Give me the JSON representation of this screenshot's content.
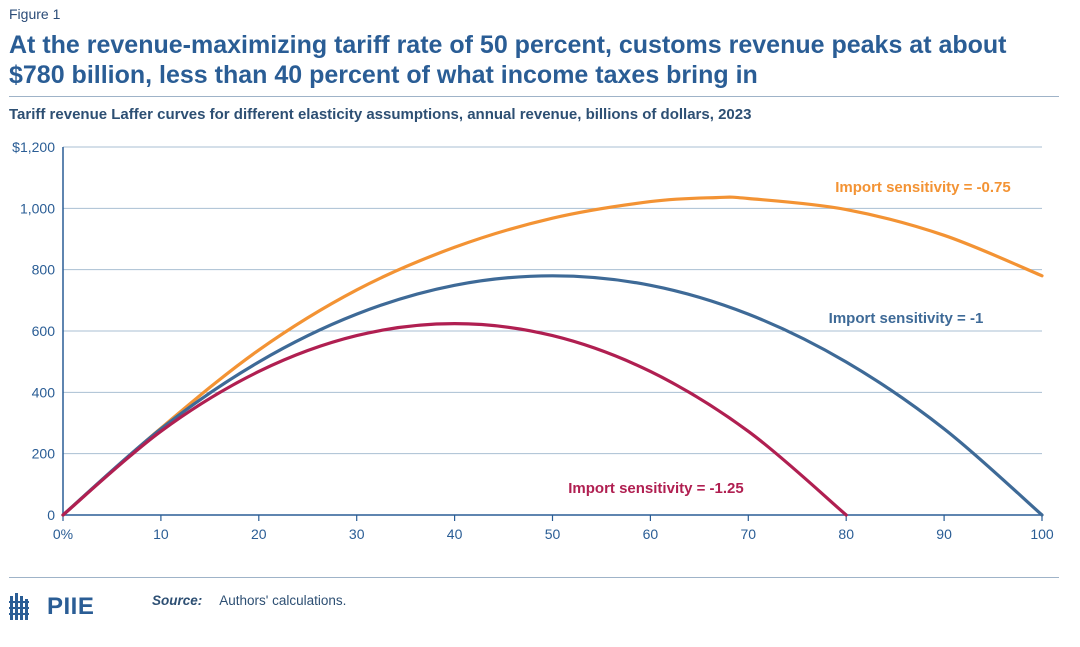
{
  "figure_label": "Figure 1",
  "title": "At the revenue-maximizing tariff rate of 50 percent, customs revenue peaks at about $780 billion, less than 40 percent of what income taxes bring in",
  "subtitle": "Tariff revenue Laffer curves for different elasticity assumptions, annual revenue, billions of dollars, 2023",
  "chart_data": {
    "type": "line",
    "title": "",
    "xlabel": "",
    "ylabel": "",
    "xlim": [
      0,
      100
    ],
    "ylim": [
      0,
      1200
    ],
    "x_ticks": [
      0,
      10,
      20,
      30,
      40,
      50,
      60,
      70,
      80,
      90,
      100
    ],
    "x_tick_labels": [
      "0%",
      "10",
      "20",
      "30",
      "40",
      "50",
      "60",
      "70",
      "80",
      "90",
      "100"
    ],
    "y_ticks": [
      0,
      200,
      400,
      600,
      800,
      1000,
      1200
    ],
    "y_tick_labels": [
      "0",
      "200",
      "400",
      "600",
      "800",
      "1,000",
      "$1,200"
    ],
    "grid": "horizontal",
    "series": [
      {
        "name": "Import sensitivity = -0.75",
        "color": "#f39334",
        "x": [
          0,
          10,
          20,
          30,
          40,
          50,
          60,
          66.7,
          70,
          80,
          90,
          100
        ],
        "values": [
          0,
          283,
          538,
          734,
          873,
          968,
          1022,
          1035,
          1032,
          996,
          912,
          780
        ]
      },
      {
        "name": "Import sensitivity = -1",
        "color": "#3e6a97",
        "x": [
          0,
          10,
          20,
          30,
          40,
          50,
          60,
          70,
          80,
          90,
          100
        ],
        "values": [
          0,
          281,
          499,
          655,
          749,
          780,
          749,
          655,
          499,
          281,
          0
        ]
      },
      {
        "name": "Import sensitivity = -1.25",
        "color": "#b01f51",
        "x": [
          0,
          10,
          20,
          30,
          40,
          50,
          60,
          70,
          80
        ],
        "values": [
          0,
          273,
          468,
          585,
          624,
          585,
          468,
          273,
          0
        ]
      }
    ]
  },
  "source": {
    "label": "Source:",
    "text": "Authors' calculations."
  },
  "logo": {
    "text": "PIIE",
    "icon": "piie-building-icon"
  }
}
